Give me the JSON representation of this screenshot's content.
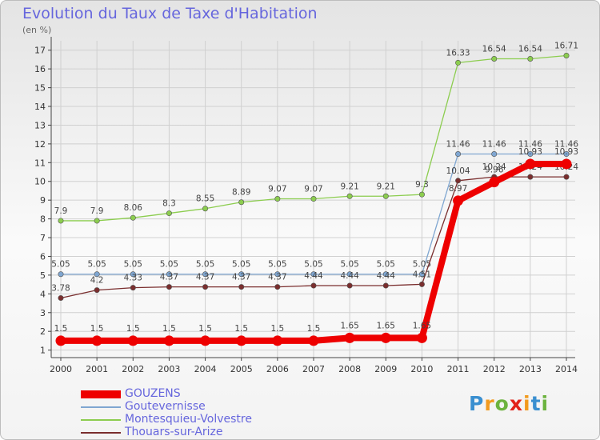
{
  "title": "Evolution du Taux de Taxe d'Habitation",
  "unit": "(en %)",
  "brand": {
    "letters": [
      "P",
      "r",
      "o",
      "x",
      "i",
      "t",
      "i"
    ],
    "colors": [
      "#3a8fd0",
      "#f29a1f",
      "#6cb33f",
      "#e2231a",
      "#f29a1f",
      "#3a8fd0",
      "#6cb33f"
    ]
  },
  "chart_data": {
    "type": "line",
    "x": [
      "2000",
      "2001",
      "2002",
      "2003",
      "2004",
      "2005",
      "2006",
      "2007",
      "2008",
      "2009",
      "2010",
      "2011",
      "2012",
      "2013",
      "2014"
    ],
    "yticks": [
      1,
      2,
      3,
      4,
      5,
      6,
      7,
      8,
      9,
      10,
      11,
      12,
      13,
      14,
      15,
      16,
      17
    ],
    "ylim": [
      0.6,
      17.5
    ],
    "grid": true,
    "legend_position": "bottom-left",
    "series": [
      {
        "name": "Montesquieu-Volvestre",
        "color": "#8ccd4f",
        "width": 1.3,
        "values": [
          7.9,
          7.9,
          8.06,
          8.3,
          8.55,
          8.89,
          9.07,
          9.07,
          9.21,
          9.21,
          9.3,
          16.33,
          16.54,
          16.54,
          16.71
        ],
        "labels": [
          "7.9",
          "7.9",
          "8.06",
          "8.3",
          "8.55",
          "8.89",
          "9.07",
          "9.07",
          "9.21",
          "9.21",
          "9.3",
          "16.33",
          "16.54",
          "16.54",
          "16.71"
        ]
      },
      {
        "name": "Goutevernisse",
        "color": "#7fa6d1",
        "width": 1.3,
        "values": [
          5.05,
          5.05,
          5.05,
          5.05,
          5.05,
          5.05,
          5.05,
          5.05,
          5.05,
          5.05,
          5.05,
          11.46,
          11.46,
          11.46,
          11.46
        ],
        "labels": [
          "5.05",
          "5.05",
          "5.05",
          "5.05",
          "5.05",
          "5.05",
          "5.05",
          "5.05",
          "5.05",
          "5.05",
          "5.05",
          "11.46",
          "11.46",
          "11.46",
          "11.46"
        ]
      },
      {
        "name": "Thouars-sur-Arize",
        "color": "#7a2e2e",
        "width": 1.3,
        "values": [
          3.78,
          4.2,
          4.33,
          4.37,
          4.37,
          4.37,
          4.37,
          4.44,
          4.44,
          4.44,
          4.51,
          10.04,
          10.24,
          10.24,
          10.24
        ],
        "labels": [
          "3.78",
          "4.2",
          "4.33",
          "4.37",
          "4.37",
          "4.37",
          "4.37",
          "4.44",
          "4.44",
          "4.44",
          "4.51",
          "10.04",
          "10.24",
          "10.24",
          "10.24"
        ]
      },
      {
        "name": "GOUZENS",
        "color": "#ee0000",
        "width": 8,
        "values": [
          1.5,
          1.5,
          1.5,
          1.5,
          1.5,
          1.5,
          1.5,
          1.5,
          1.65,
          1.65,
          1.65,
          8.97,
          9.96,
          10.93,
          10.93
        ],
        "labels": [
          "1.5",
          "1.5",
          "1.5",
          "1.5",
          "1.5",
          "1.5",
          "1.5",
          "1.5",
          "1.65",
          "1.65",
          "1.65",
          "8.97",
          "9.96",
          "10.93",
          "10.93"
        ]
      }
    ],
    "legend_order": [
      "GOUZENS",
      "Goutevernisse",
      "Montesquieu-Volvestre",
      "Thouars-sur-Arize"
    ]
  }
}
